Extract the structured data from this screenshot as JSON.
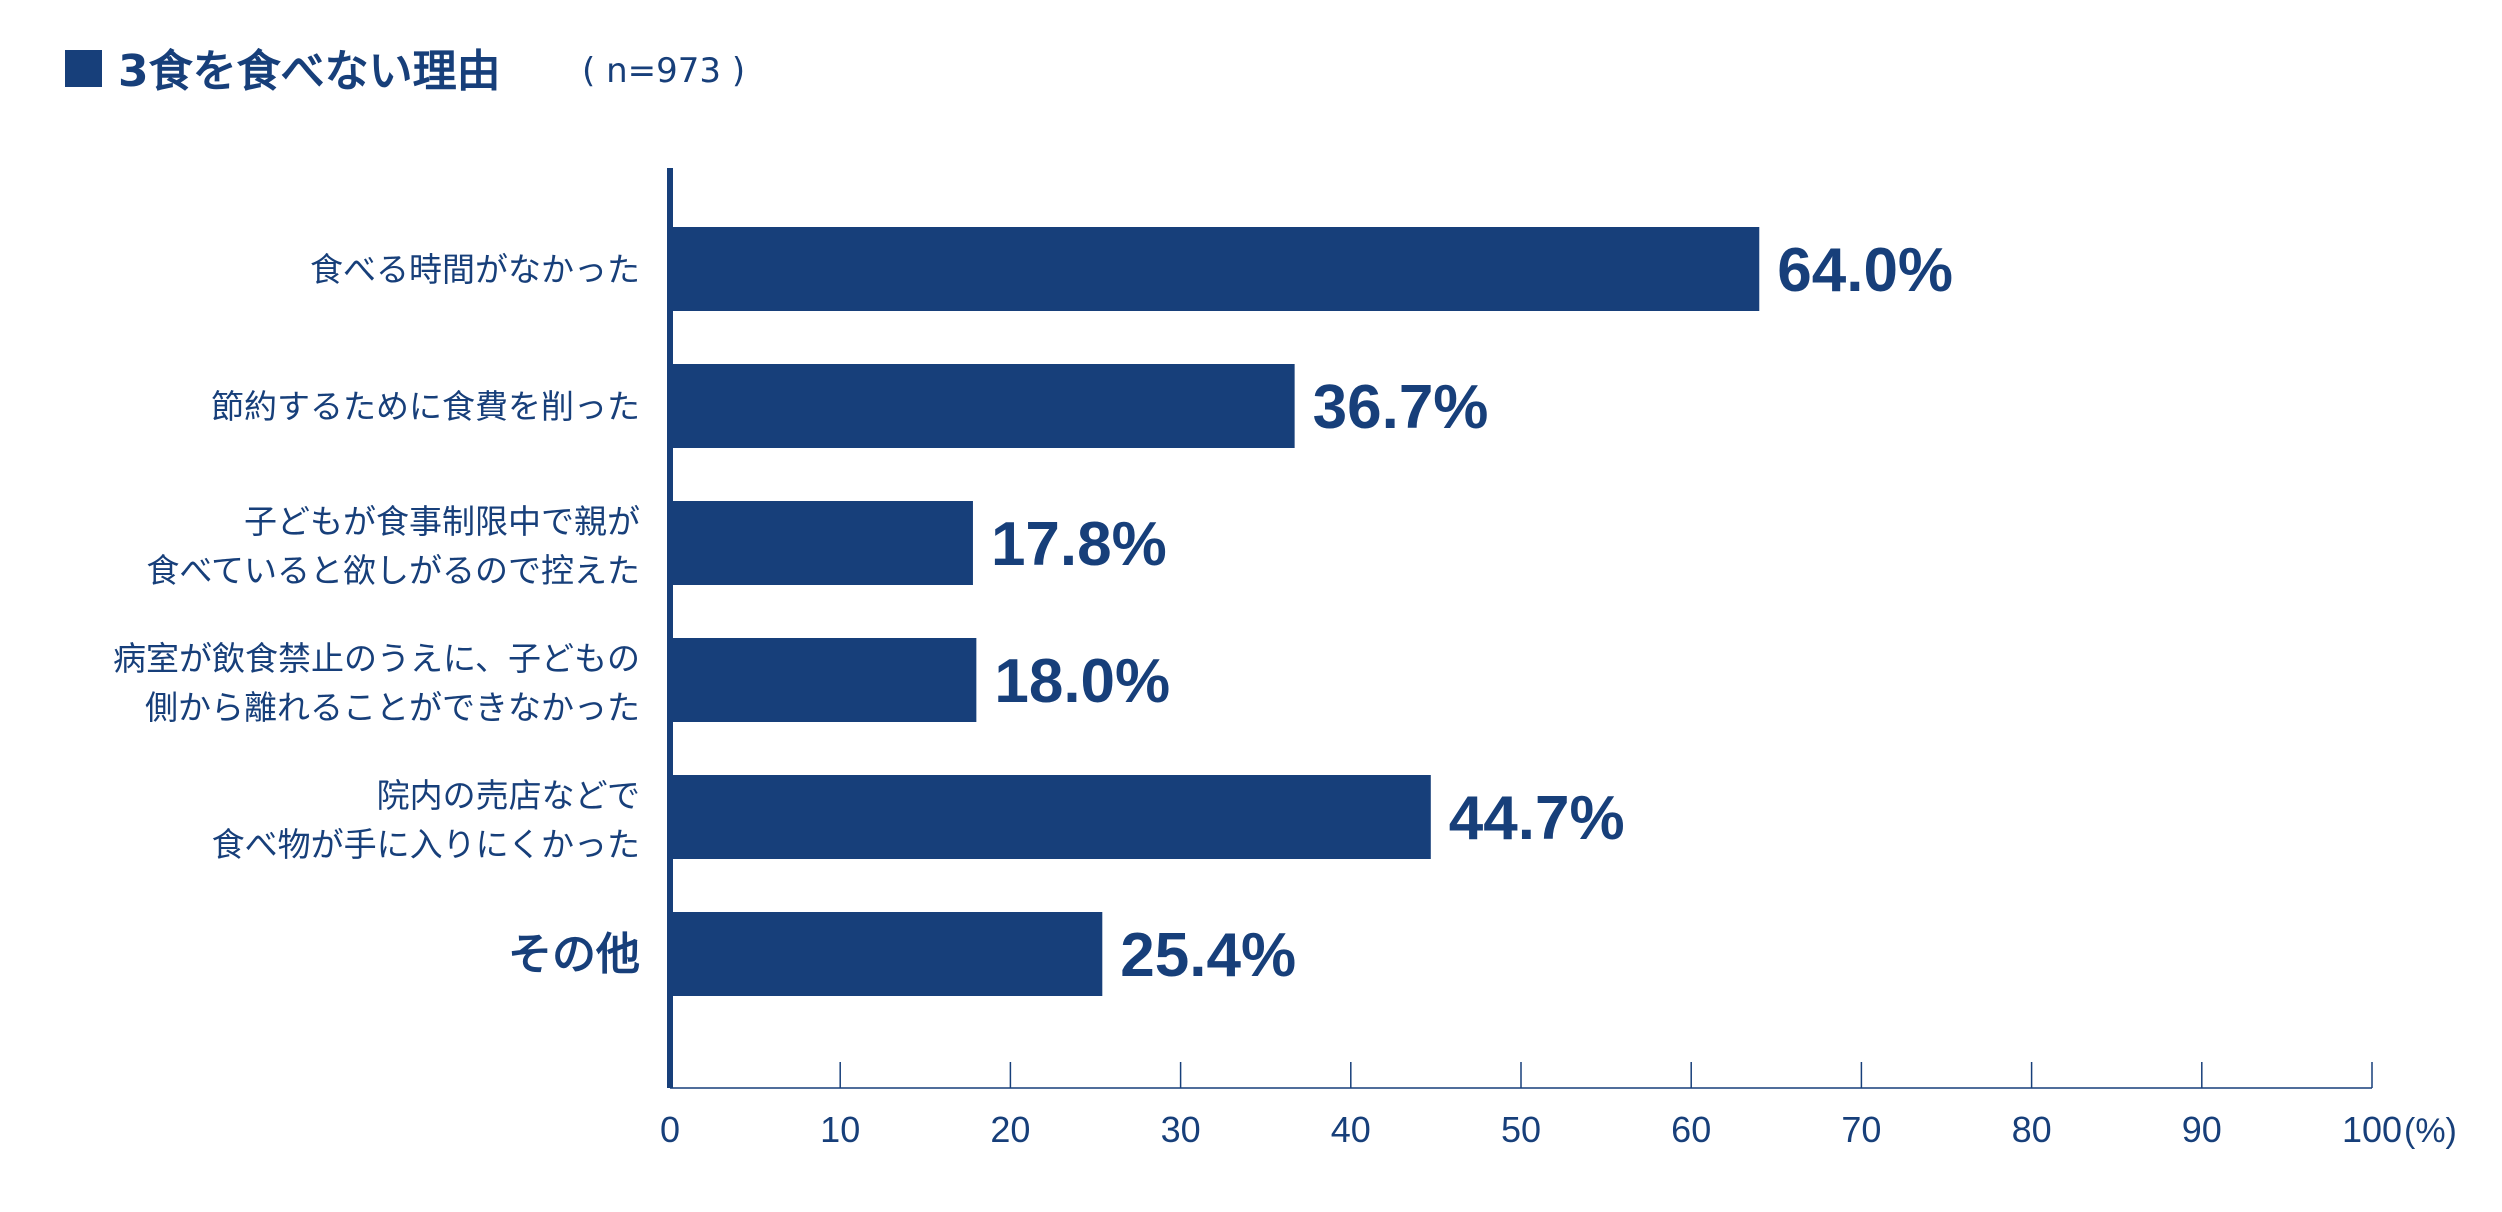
{
  "title": {
    "main": "3食を食べない理由",
    "sample": "( n=973 )"
  },
  "chart_data": {
    "type": "bar",
    "orientation": "horizontal",
    "title": "3食を食べない理由",
    "subtitle": "( n=973 )",
    "categories": [
      [
        "食べる時間がなかった"
      ],
      [
        "節約するために食費を削った"
      ],
      [
        "子どもが食事制限中で親が",
        "食べていると欲しがるので控えた"
      ],
      [
        "病室が飲食禁止のうえに、子どもの",
        "側から離れることができなかった"
      ],
      [
        "院内の売店などで",
        "食べ物が手に入りにくかった"
      ],
      [
        "その他"
      ]
    ],
    "values": [
      64.0,
      36.7,
      17.8,
      18.0,
      44.7,
      25.4
    ],
    "value_labels": [
      "64.0%",
      "36.7%",
      "17.8%",
      "18.0%",
      "44.7%",
      "25.4%"
    ],
    "xlim": [
      0,
      100
    ],
    "ticks": [
      "0",
      "10",
      "20",
      "30",
      "40",
      "50",
      "60",
      "70",
      "80",
      "90",
      "100"
    ],
    "unit": "(%)",
    "grid": false,
    "colors": {
      "bar": "#173f7a",
      "text": "#173f7a"
    }
  }
}
